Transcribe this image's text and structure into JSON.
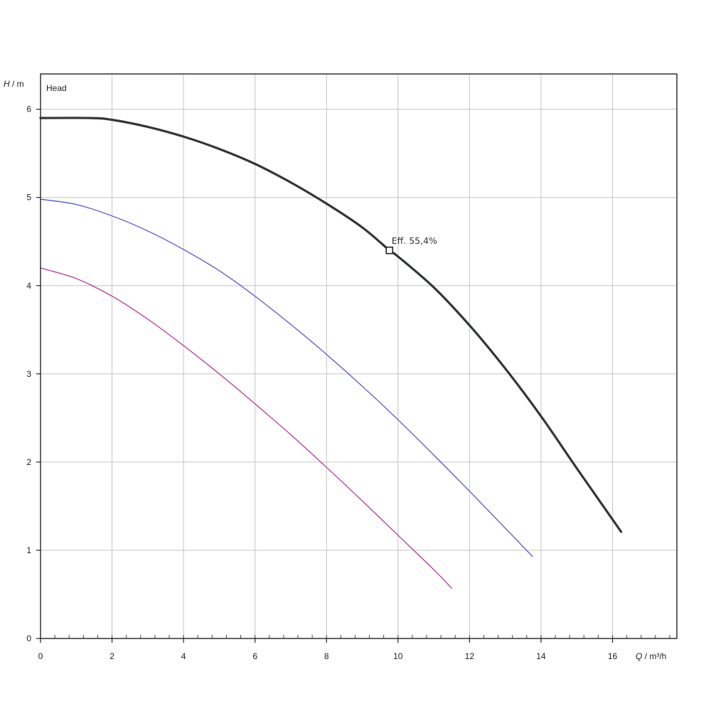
{
  "chart_data": {
    "type": "line",
    "title": "Head",
    "ylabel": {
      "symbol": "H",
      "unit": " / m"
    },
    "xlabel": {
      "symbol": "Q",
      "unit": " / m³/h"
    },
    "xlim": [
      0,
      17.8
    ],
    "ylim": [
      0,
      6.4
    ],
    "x_ticks": [
      0,
      2,
      4,
      6,
      8,
      10,
      12,
      14,
      16
    ],
    "y_ticks": [
      0,
      1,
      2,
      3,
      4,
      5,
      6
    ],
    "x_minor_step": 0.4,
    "grid": true,
    "series": [
      {
        "color": "#333638",
        "values": [
          [
            0,
            5.9
          ],
          [
            1.4,
            5.9
          ],
          [
            2,
            5.88
          ],
          [
            3,
            5.8
          ],
          [
            4,
            5.69
          ],
          [
            5,
            5.55
          ],
          [
            6,
            5.38
          ],
          [
            7,
            5.17
          ],
          [
            8,
            4.93
          ],
          [
            9,
            4.66
          ],
          [
            9.76,
            4.4
          ],
          [
            10,
            4.33
          ],
          [
            11,
            3.98
          ],
          [
            12,
            3.55
          ],
          [
            13,
            3.06
          ],
          [
            14,
            2.52
          ],
          [
            15,
            1.93
          ],
          [
            16.24,
            1.21
          ]
        ]
      },
      {
        "color": "#5757c8",
        "values": [
          [
            0,
            4.98
          ],
          [
            1,
            4.92
          ],
          [
            2,
            4.79
          ],
          [
            3,
            4.62
          ],
          [
            4,
            4.41
          ],
          [
            5,
            4.17
          ],
          [
            6,
            3.88
          ],
          [
            7,
            3.56
          ],
          [
            8,
            3.22
          ],
          [
            9,
            2.86
          ],
          [
            10,
            2.48
          ],
          [
            11,
            2.08
          ],
          [
            12,
            1.67
          ],
          [
            13,
            1.25
          ],
          [
            13.76,
            0.93
          ]
        ]
      },
      {
        "color": "#b03a9a",
        "values": [
          [
            0,
            4.2
          ],
          [
            1,
            4.08
          ],
          [
            2,
            3.88
          ],
          [
            3,
            3.62
          ],
          [
            4,
            3.32
          ],
          [
            5,
            3.0
          ],
          [
            6,
            2.66
          ],
          [
            7,
            2.31
          ],
          [
            8,
            1.94
          ],
          [
            9,
            1.56
          ],
          [
            10,
            1.17
          ],
          [
            11,
            0.78
          ],
          [
            11.5,
            0.57
          ]
        ]
      }
    ],
    "annotations": [
      {
        "text": "Eff.  55,4%",
        "x": 9.76,
        "y": 4.4,
        "marker": "square",
        "series": 0
      }
    ]
  }
}
